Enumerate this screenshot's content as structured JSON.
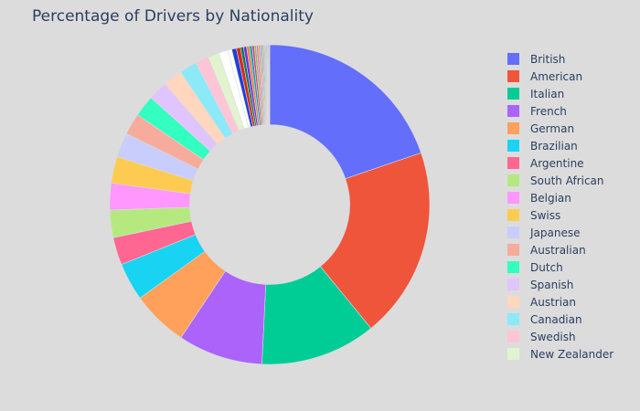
{
  "chart_data": {
    "type": "pie",
    "hole": 0.5,
    "title": "Percentage of Drivers by Nationality",
    "slices": [
      {
        "label": "British",
        "percent": 19.1,
        "color": "#636efa"
      },
      {
        "label": "American",
        "percent": 18.7,
        "color": "#ef553b"
      },
      {
        "label": "Italian",
        "percent": 11.3,
        "color": "#00cc96"
      },
      {
        "label": "French",
        "percent": 8.3,
        "color": "#ab63fa"
      },
      {
        "label": "German",
        "percent": 5.5,
        "color": "#ffa15a"
      },
      {
        "label": "Brazilian",
        "percent": 3.7,
        "color": "#19d3f3"
      },
      {
        "label": "Argentine",
        "percent": 2.7,
        "color": "#ff6692"
      },
      {
        "label": "South African",
        "percent": 2.7,
        "color": "#b6e880"
      },
      {
        "label": "Belgian",
        "percent": 2.6,
        "color": "#ff97ff"
      },
      {
        "label": "Swiss",
        "percent": 2.6,
        "color": "#fecb52"
      },
      {
        "label": "Japanese",
        "percent": 2.4,
        "color": "#c9cdfb"
      },
      {
        "label": "Australian",
        "percent": 2.1,
        "color": "#f7ab9d"
      },
      {
        "label": "Dutch",
        "percent": 2.1,
        "color": "#32ffc0"
      },
      {
        "label": "Spanish",
        "percent": 1.9,
        "color": "#e0c4fd"
      },
      {
        "label": "Austrian",
        "percent": 1.9,
        "color": "#ffd7bf"
      },
      {
        "label": "Canadian",
        "percent": 1.7,
        "color": "#8ce9f8"
      },
      {
        "label": "Swedish",
        "percent": 1.3,
        "color": "#ffc4d6"
      },
      {
        "label": "New Zealander",
        "percent": 1.1,
        "color": "#e2f3cf"
      }
    ],
    "unlisted_slices": [
      {
        "percent": 0.9,
        "color": "#ffffff"
      },
      {
        "percent": 0.4,
        "color": "#ffffff"
      },
      {
        "percent": 0.45,
        "color": "#1f3fd8"
      },
      {
        "percent": 0.4,
        "color": "#d42b1a"
      },
      {
        "percent": 0.3,
        "color": "#0a7a57"
      },
      {
        "percent": 0.3,
        "color": "#7d2ae0"
      },
      {
        "percent": 0.28,
        "color": "#e08a3c"
      },
      {
        "percent": 0.25,
        "color": "#10a0c0"
      },
      {
        "percent": 0.22,
        "color": "#e0417a"
      },
      {
        "percent": 0.2,
        "color": "#8fc050"
      },
      {
        "percent": 0.18,
        "color": "#e070e0"
      },
      {
        "percent": 0.16,
        "color": "#e0a830"
      },
      {
        "percent": 0.14,
        "color": "#a0a4e8"
      },
      {
        "percent": 0.12,
        "color": "#e08878"
      },
      {
        "percent": 0.11,
        "color": "#20d8a0"
      },
      {
        "percent": 0.1,
        "color": "#c0a0e8"
      },
      {
        "percent": 0.1,
        "color": "#e8b898"
      },
      {
        "percent": 0.09,
        "color": "#60c8e0"
      },
      {
        "percent": 0.08,
        "color": "#e8a0b8"
      },
      {
        "percent": 0.08,
        "color": "#c8e0b0"
      },
      {
        "percent": 0.07,
        "color": "#636efa"
      },
      {
        "percent": 0.06,
        "color": "#ef553b"
      }
    ],
    "start_angle_deg": 0,
    "direction": "clockwise",
    "legend_position": "right"
  }
}
